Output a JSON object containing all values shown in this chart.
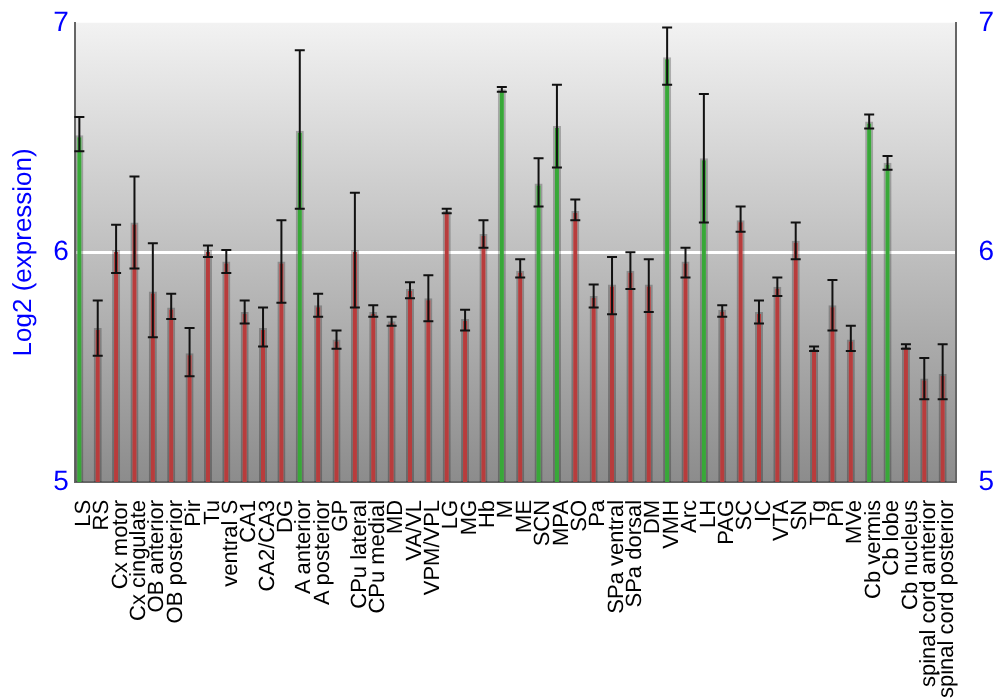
{
  "chart_data": {
    "type": "bar",
    "ylabel": "Log2 (expression)",
    "categories": [
      "LS",
      "RS",
      "Cx motor",
      "Cx cingulate",
      "OB anterior",
      "OB posterior",
      "Pir",
      "Tu",
      "ventral S",
      "CA1",
      "CA2/CA3",
      "DG",
      "A anterior",
      "A posterior",
      "GP",
      "CPu lateral",
      "CPu medial",
      "MD",
      "VA/VL",
      "VPM/VPL",
      "LG",
      "MG",
      "Hb",
      "M",
      "ME",
      "SCN",
      "MPA",
      "SO",
      "Pa",
      "SPa ventral",
      "SPa dorsal",
      "DM",
      "VMH",
      "Arc",
      "LH",
      "PAG",
      "SC",
      "IC",
      "VTA",
      "SN",
      "Tg",
      "Pn",
      "MVe",
      "Cb vermis",
      "Cb lobe",
      "Cb nucleus",
      "spinal cord anterior",
      "spinal cord posterior"
    ],
    "values": [
      6.51,
      5.67,
      6.01,
      6.13,
      5.83,
      5.76,
      5.56,
      6.01,
      5.96,
      5.74,
      5.67,
      5.96,
      6.53,
      5.77,
      5.62,
      6.01,
      5.74,
      5.7,
      5.84,
      5.8,
      6.18,
      5.71,
      6.08,
      6.71,
      5.92,
      6.3,
      6.55,
      6.18,
      5.81,
      5.86,
      5.92,
      5.86,
      6.85,
      5.96,
      6.41,
      5.75,
      6.14,
      5.74,
      5.85,
      6.05,
      5.58,
      5.77,
      5.62,
      6.57,
      6.39,
      5.59,
      5.45,
      5.47
    ],
    "errors": [
      [
        6.44,
        6.59
      ],
      [
        5.55,
        5.79
      ],
      [
        5.91,
        6.12
      ],
      [
        5.93,
        6.33
      ],
      [
        5.63,
        6.04
      ],
      [
        5.71,
        5.82
      ],
      [
        5.46,
        5.67
      ],
      [
        5.98,
        6.03
      ],
      [
        5.91,
        6.01
      ],
      [
        5.69,
        5.79
      ],
      [
        5.59,
        5.76
      ],
      [
        5.78,
        6.14
      ],
      [
        6.19,
        6.88
      ],
      [
        5.72,
        5.82
      ],
      [
        5.58,
        5.66
      ],
      [
        5.76,
        6.26
      ],
      [
        5.72,
        5.77
      ],
      [
        5.68,
        5.72
      ],
      [
        5.8,
        5.87
      ],
      [
        5.7,
        5.9
      ],
      [
        6.17,
        6.19
      ],
      [
        5.66,
        5.75
      ],
      [
        6.02,
        6.14
      ],
      [
        6.7,
        6.72
      ],
      [
        5.89,
        5.97
      ],
      [
        6.2,
        6.41
      ],
      [
        6.37,
        6.73
      ],
      [
        6.14,
        6.23
      ],
      [
        5.76,
        5.86
      ],
      [
        5.73,
        5.98
      ],
      [
        5.84,
        6.0
      ],
      [
        5.74,
        5.97
      ],
      [
        6.73,
        6.98
      ],
      [
        5.89,
        6.02
      ],
      [
        6.13,
        6.69
      ],
      [
        5.72,
        5.77
      ],
      [
        6.09,
        6.2
      ],
      [
        5.69,
        5.79
      ],
      [
        5.81,
        5.89
      ],
      [
        5.97,
        6.13
      ],
      [
        5.57,
        5.59
      ],
      [
        5.66,
        5.88
      ],
      [
        5.57,
        5.68
      ],
      [
        6.54,
        6.6
      ],
      [
        6.36,
        6.42
      ],
      [
        5.58,
        5.6
      ],
      [
        5.36,
        5.54
      ],
      [
        5.36,
        5.6
      ]
    ],
    "colors": [
      "#38a838",
      "#b83c3c",
      "#b83c3c",
      "#b83c3c",
      "#b83c3c",
      "#b83c3c",
      "#b83c3c",
      "#b83c3c",
      "#b83c3c",
      "#b83c3c",
      "#b83c3c",
      "#b83c3c",
      "#38a838",
      "#b83c3c",
      "#b83c3c",
      "#b83c3c",
      "#b83c3c",
      "#b83c3c",
      "#b83c3c",
      "#b83c3c",
      "#b83c3c",
      "#b83c3c",
      "#b83c3c",
      "#38a838",
      "#b83c3c",
      "#38a838",
      "#38a838",
      "#b83c3c",
      "#b83c3c",
      "#b83c3c",
      "#b83c3c",
      "#b83c3c",
      "#38a838",
      "#b83c3c",
      "#38a838",
      "#b83c3c",
      "#b83c3c",
      "#b83c3c",
      "#b83c3c",
      "#b83c3c",
      "#b83c3c",
      "#b83c3c",
      "#b83c3c",
      "#38a838",
      "#38a838",
      "#b83c3c",
      "#b83c3c",
      "#b83c3c"
    ],
    "ylim": [
      5,
      7
    ],
    "yticks": [
      5,
      6,
      7
    ],
    "y2lim": [
      5,
      7
    ],
    "y2ticks": [
      5,
      6,
      7
    ],
    "grid": "y",
    "legend": false
  }
}
